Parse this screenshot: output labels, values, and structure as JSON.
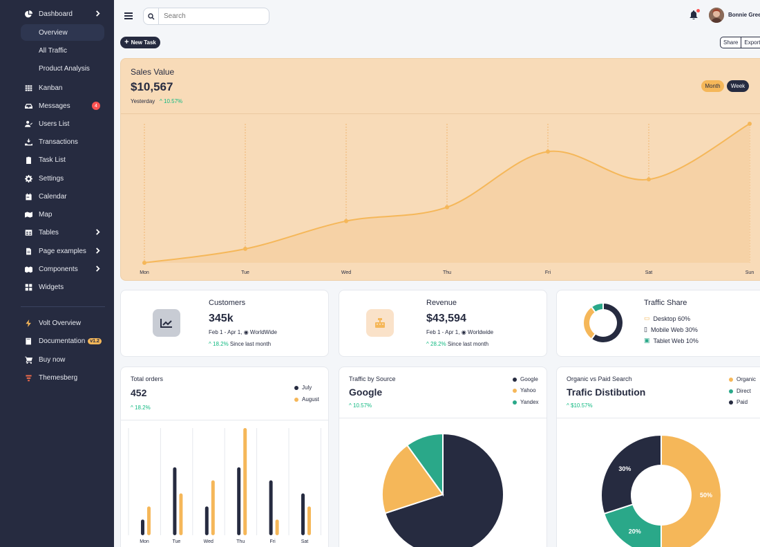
{
  "sidebar": {
    "dashboard": "Dashboard",
    "sub_items": [
      "Overview",
      "All Traffic",
      "Product Analysis"
    ],
    "items": [
      {
        "label": "Kanban",
        "icon": "grid-icon"
      },
      {
        "label": "Messages",
        "icon": "inbox-icon",
        "badge": "4"
      },
      {
        "label": "Users List",
        "icon": "user-check-icon"
      },
      {
        "label": "Transactions",
        "icon": "hand-coin-icon"
      },
      {
        "label": "Task List",
        "icon": "clipboard-icon"
      },
      {
        "label": "Settings",
        "icon": "gear-icon"
      },
      {
        "label": "Calendar",
        "icon": "calendar-icon"
      },
      {
        "label": "Map",
        "icon": "map-icon"
      },
      {
        "label": "Tables",
        "icon": "table-icon"
      },
      {
        "label": "Page examples",
        "icon": "document-icon"
      },
      {
        "label": "Components",
        "icon": "boxes-icon"
      },
      {
        "label": "Widgets",
        "icon": "widgets-icon"
      }
    ],
    "footer": [
      {
        "label": "Volt Overview",
        "icon": "bolt-icon"
      },
      {
        "label": "Documentation",
        "icon": "book-icon",
        "badge": "v1.2"
      },
      {
        "label": "Buy now",
        "icon": "cart-icon"
      },
      {
        "label": "Themesberg",
        "icon": "themesberg-logo-icon"
      }
    ]
  },
  "topbar": {
    "search_placeholder": "Search",
    "user_name": "Bonnie Green",
    "new_task": "New Task",
    "share": "Share",
    "export": "Export"
  },
  "sales": {
    "title": "Sales Value",
    "value": "$10,567",
    "yesterday": "Yesterday",
    "pct": "10.57%",
    "month": "Month",
    "week": "Week",
    "accent": "#f5b759"
  },
  "kpis": {
    "customers": {
      "title": "Customers",
      "value": "345k",
      "range": "Feb 1 - Apr 1,",
      "region": "WorldWide",
      "pct": "18.2%",
      "since": "Since last month"
    },
    "revenue": {
      "title": "Revenue",
      "value": "$43,594",
      "range": "Feb 1 - Apr 1,",
      "region": "Worldwide",
      "pct": "28.2%",
      "since": "Since last month"
    },
    "traffic_share": {
      "title": "Traffic Share",
      "rows": [
        "Desktop 60%",
        "Mobile Web 30%",
        "Tablet Web 10%"
      ]
    }
  },
  "orders": {
    "title": "Total orders",
    "value": "452",
    "pct": "18.2%",
    "legend": [
      "July",
      "August"
    ]
  },
  "traffic_source": {
    "title": "Traffic by Source",
    "value": "Google",
    "pct": "10.57%",
    "legend": [
      "Google",
      "Yahoo",
      "Yandex"
    ]
  },
  "organic": {
    "title": "Organic vs Paid Search",
    "value": "Trafic Distibution",
    "pct": "$10.57%",
    "legend": [
      "Organic",
      "Direct",
      "Paid"
    ]
  },
  "chart_data": [
    {
      "type": "area",
      "categories": [
        "Mon",
        "Tue",
        "Wed",
        "Thu",
        "Fri",
        "Sat",
        "Sun"
      ],
      "values": [
        0,
        10,
        30,
        40,
        80,
        60,
        100
      ],
      "ylim": [
        0,
        100
      ],
      "color": "#f5b759"
    },
    {
      "type": "bar",
      "categories": [
        "Mon",
        "Tue",
        "Wed",
        "Thu",
        "Fri",
        "Sat"
      ],
      "series": [
        {
          "name": "July",
          "values": [
            12,
            52,
            22,
            52,
            42,
            32
          ],
          "color": "#262b40"
        },
        {
          "name": "August",
          "values": [
            22,
            32,
            42,
            82,
            12,
            22
          ],
          "color": "#f5b759"
        }
      ],
      "ylim": [
        0,
        82
      ]
    },
    {
      "type": "pie",
      "labels": [
        "Google",
        "Yahoo",
        "Yandex"
      ],
      "values": [
        70,
        20,
        10
      ],
      "colors": [
        "#262b40",
        "#f5b759",
        "#2aa889"
      ]
    },
    {
      "type": "pie",
      "labels": [
        "Organic",
        "Direct",
        "Paid"
      ],
      "values": [
        50,
        20,
        30
      ],
      "colors": [
        "#f5b759",
        "#2aa889",
        "#262b40"
      ],
      "data_labels": [
        "50%",
        "20%",
        "30%"
      ]
    },
    {
      "type": "pie",
      "labels": [
        "Desktop",
        "Mobile Web",
        "Tablet Web"
      ],
      "values": [
        60,
        30,
        10
      ],
      "colors": [
        "#262b40",
        "#f5b759",
        "#2aa889"
      ]
    }
  ]
}
